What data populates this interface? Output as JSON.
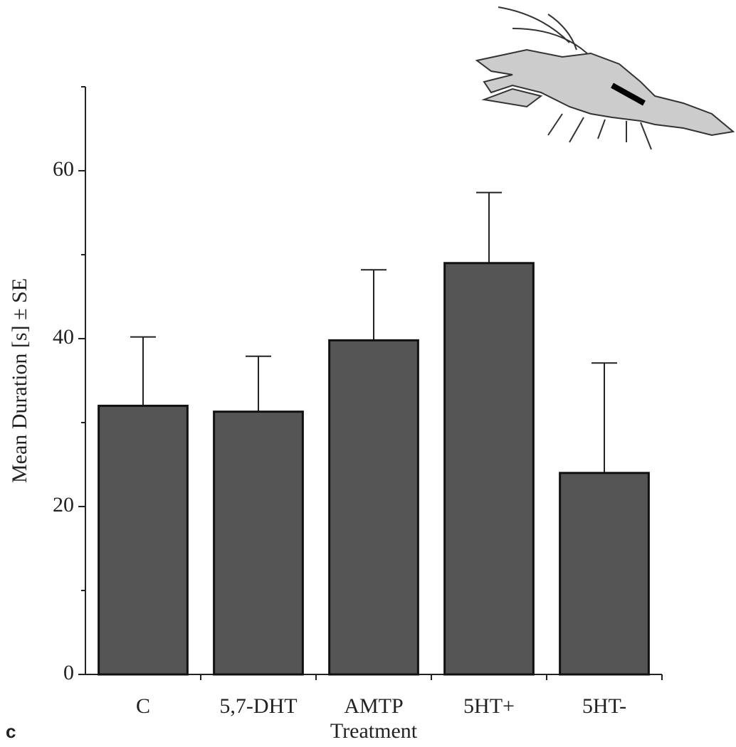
{
  "chart_data": {
    "type": "bar",
    "panel_label": "c",
    "x_label": "Treatment",
    "y_label": "Mean Duration [s] ± SE",
    "categories": [
      "C",
      "5,7-DHT",
      "AMTP",
      "5HT+",
      "5HT-"
    ],
    "values": [
      32,
      31.3,
      39.8,
      49,
      24
    ],
    "errors": [
      8.2,
      6.6,
      8.4,
      8.4,
      13.1
    ],
    "color": "#555555",
    "ylim": [
      0,
      70
    ],
    "yticks": [
      0,
      20,
      40,
      60
    ],
    "minor_yticks": [
      10,
      30,
      50,
      70
    ],
    "grid": false
  }
}
